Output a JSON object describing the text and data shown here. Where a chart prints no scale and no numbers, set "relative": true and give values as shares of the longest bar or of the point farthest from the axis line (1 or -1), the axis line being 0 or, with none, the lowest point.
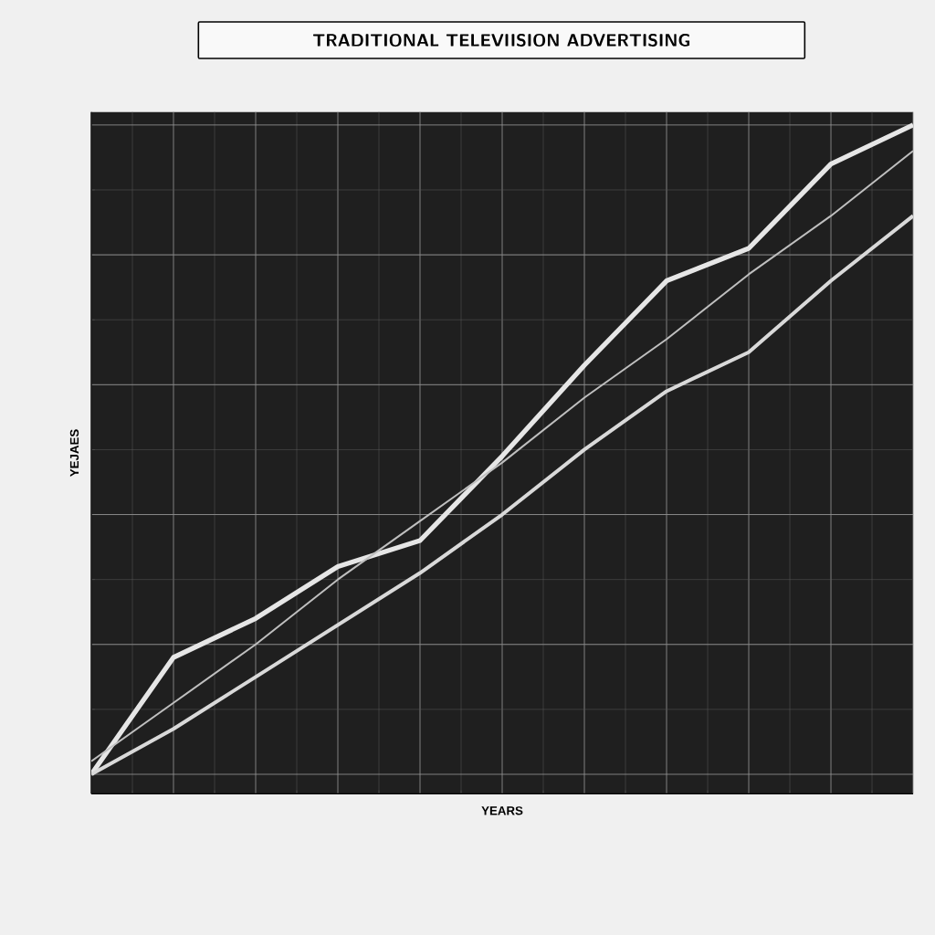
{
  "chart_data": {
    "type": "line",
    "title": "TRADITIONAL  TELEVIISION ADVERTISING",
    "xlabel": "YEARS",
    "ylabel": "YEJAES",
    "relative": true,
    "grid": true,
    "categories": [
      null,
      null,
      null,
      null,
      null,
      null,
      null,
      null,
      null,
      null,
      null
    ],
    "series": [
      {
        "color": "#e6e6e6",
        "values": [
          0,
          0.18,
          0.24,
          0.32,
          0.36,
          0.49,
          0.63,
          0.76,
          0.81,
          0.94,
          1.0
        ]
      },
      {
        "color": "#d9d9d9",
        "values": [
          0,
          0.07,
          0.15,
          0.23,
          0.31,
          0.4,
          0.5,
          0.59,
          0.65,
          0.76,
          0.86
        ]
      },
      {
        "color": "#bfbfbf",
        "values": [
          0.02,
          0.11,
          0.2,
          0.3,
          0.39,
          0.48,
          0.58,
          0.67,
          0.77,
          0.86,
          0.96
        ]
      }
    ]
  }
}
